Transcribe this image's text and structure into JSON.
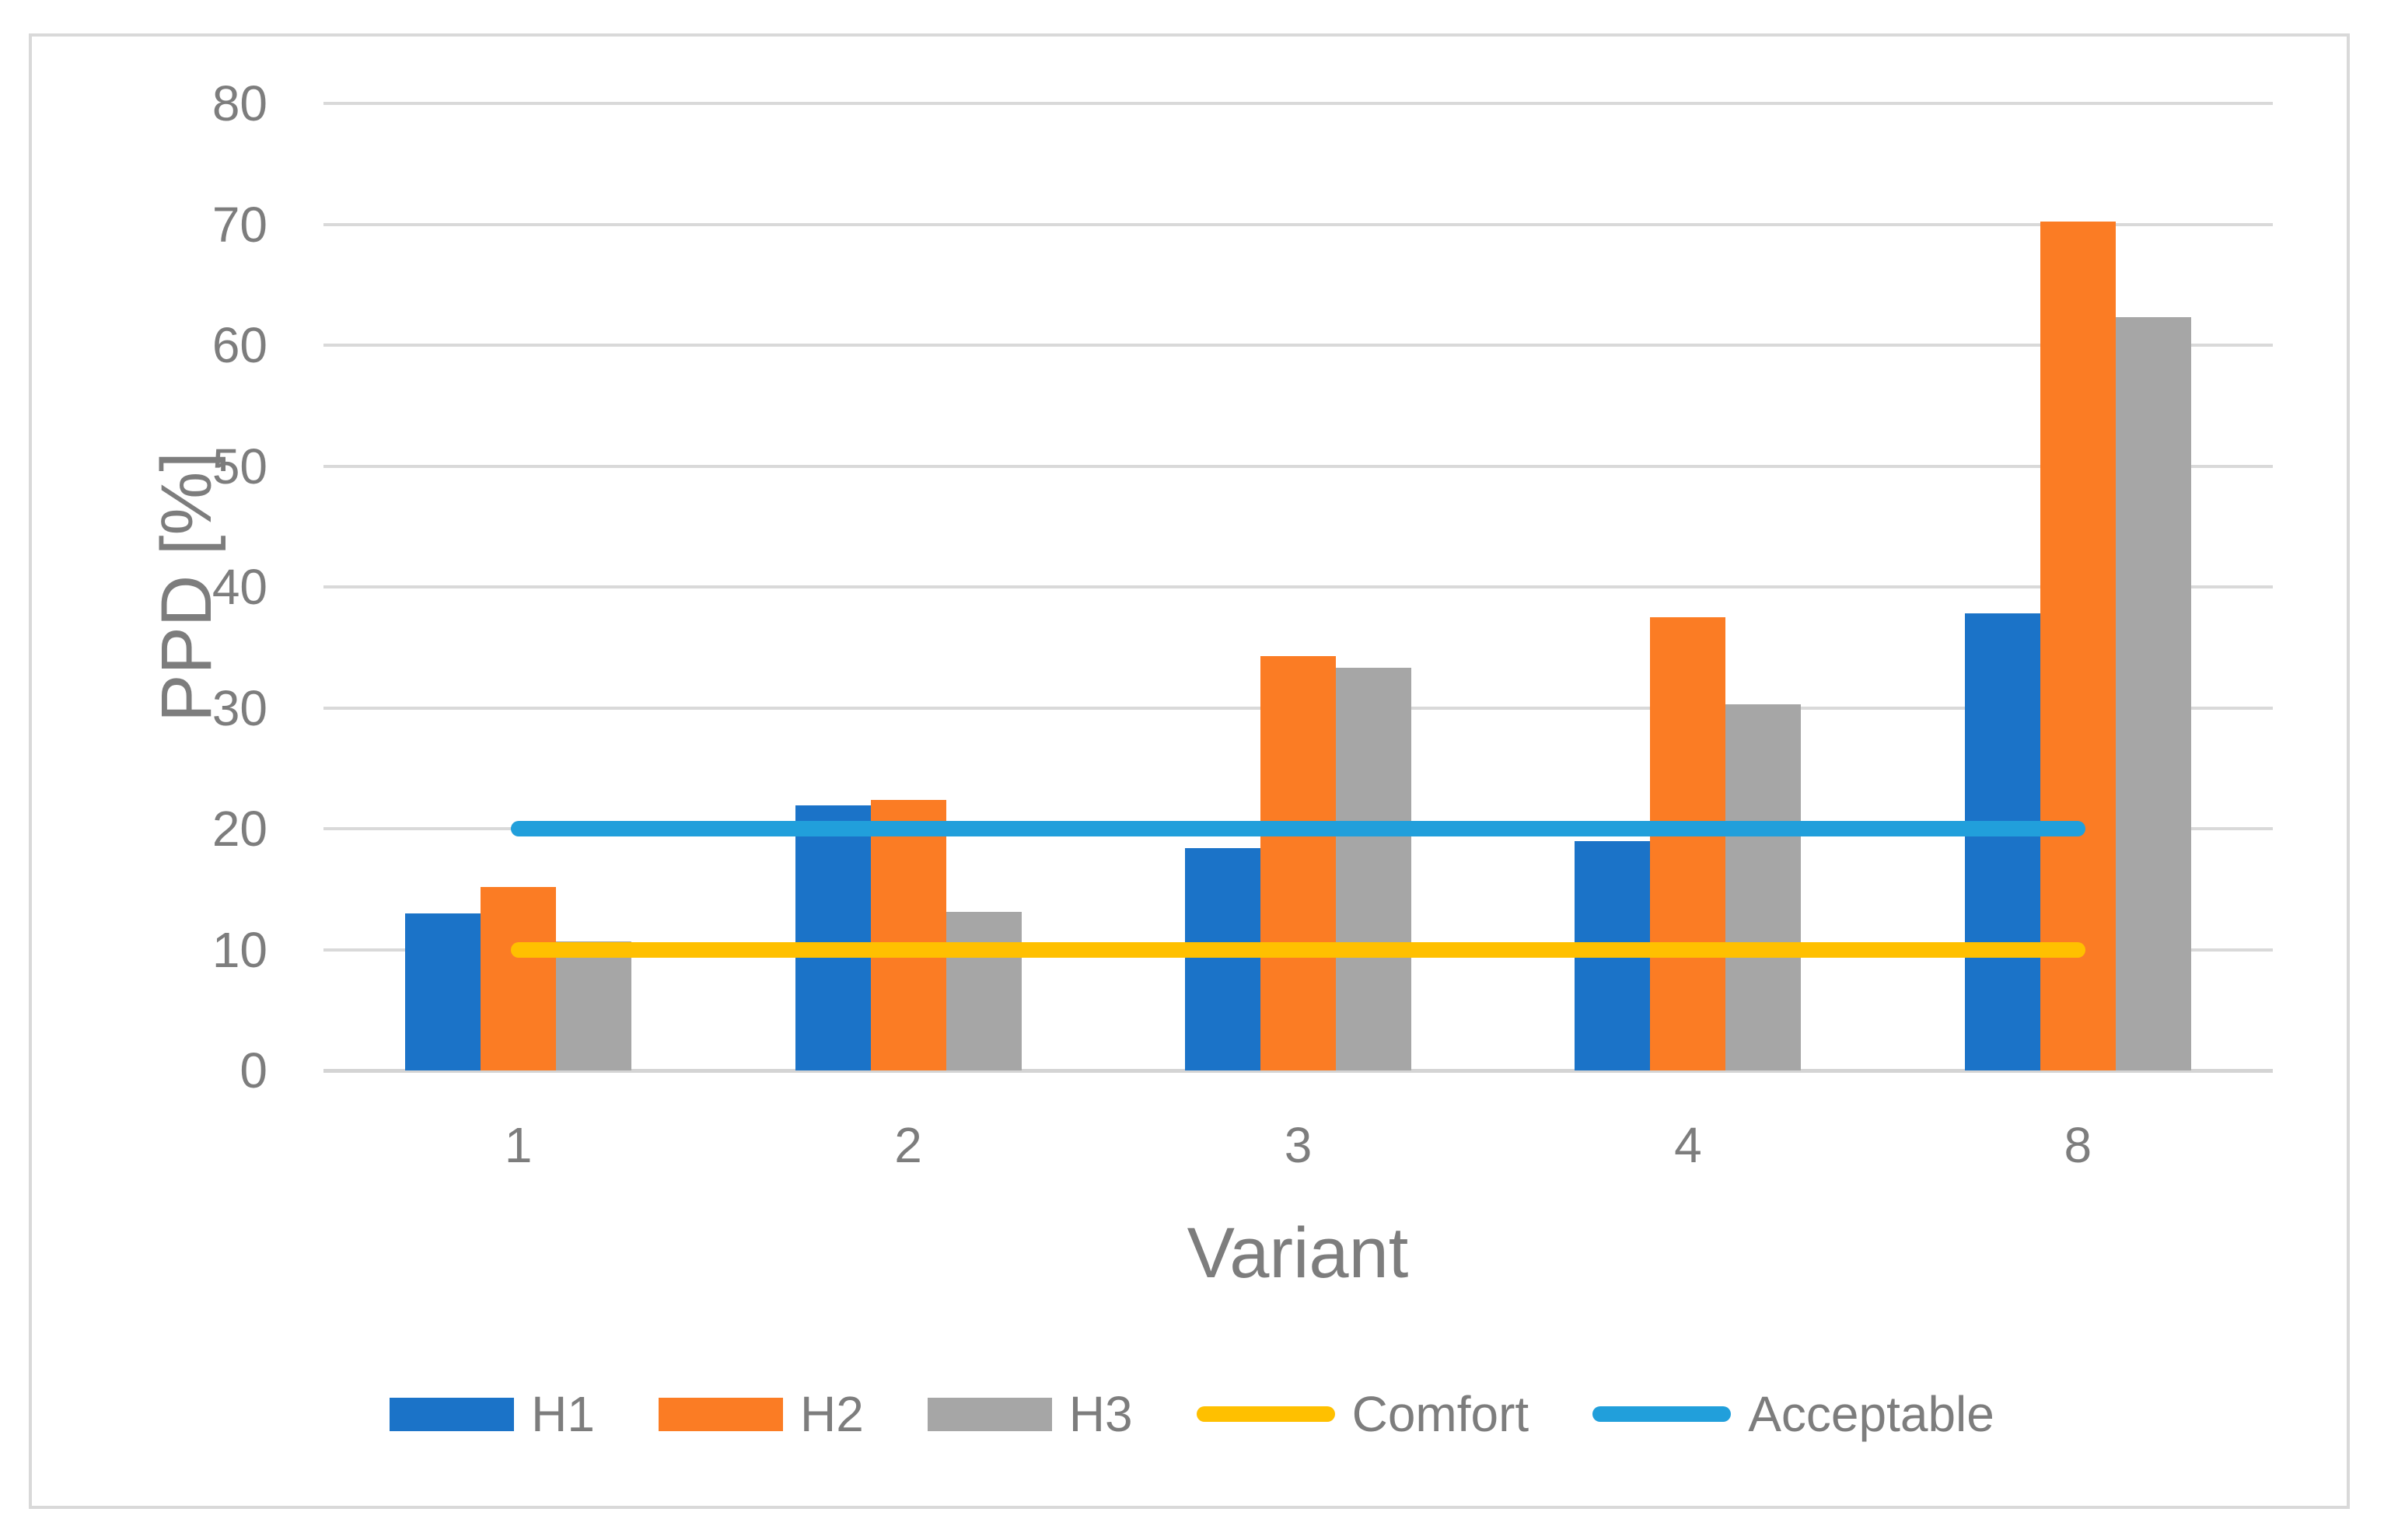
{
  "figure": {
    "background": "#FFFFFF",
    "border_color": "#D9D9D9",
    "grid_color": "#D9D9D9",
    "text_color": "#7D7D7D"
  },
  "chart_data": {
    "type": "bar",
    "title": "",
    "xlabel": "Variant",
    "ylabel": "PPD [%]",
    "categories": [
      "1",
      "2",
      "3",
      "4",
      "8"
    ],
    "series": [
      {
        "name": "H1",
        "color": "#1B73C8",
        "values": [
          13.0,
          21.9,
          18.4,
          19.0,
          37.8
        ]
      },
      {
        "name": "H2",
        "color": "#FB7C24",
        "values": [
          15.2,
          22.4,
          34.3,
          37.5,
          70.2
        ]
      },
      {
        "name": "H3",
        "color": "#A6A6A6",
        "values": [
          10.7,
          13.1,
          33.3,
          30.3,
          62.3
        ]
      }
    ],
    "reference_lines": [
      {
        "name": "Comfort",
        "color": "#FFC000",
        "value": 10
      },
      {
        "name": "Acceptable",
        "color": "#219FDB",
        "value": 20
      }
    ],
    "ylim": [
      0,
      80
    ],
    "ytick_step": 10,
    "y_ticks": [
      "0",
      "10",
      "20",
      "30",
      "40",
      "50",
      "60",
      "70",
      "80"
    ],
    "grid": true,
    "legend_position": "bottom",
    "legend_items": [
      "H1",
      "H2",
      "H3",
      "Comfort",
      "Acceptable"
    ]
  }
}
